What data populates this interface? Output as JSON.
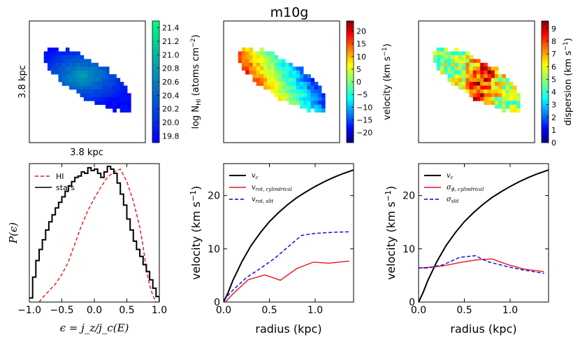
{
  "suptitle": "m10g",
  "maps": [
    {
      "id": "hi",
      "xlabel": "3.8 kpc",
      "ylabel": "3.8 kpc",
      "colorbar": {
        "label": "log N_HI (atoms cm^-2)",
        "ticks": [
          "19.8",
          "20.0",
          "20.2",
          "20.4",
          "20.6",
          "20.8",
          "21.0",
          "21.2",
          "21.4"
        ],
        "range": [
          19.7,
          21.5
        ],
        "colormap": "winter",
        "colors": [
          "#0000ff",
          "#00ff80"
        ]
      }
    },
    {
      "id": "velocity",
      "colorbar": {
        "label": "velocity (km s^-1)",
        "ticks": [
          "−20",
          "−15",
          "−10",
          "−5",
          "0",
          "5",
          "10",
          "15",
          "20"
        ],
        "range": [
          -24,
          24
        ],
        "colormap": "jet",
        "colors": [
          "#00007f",
          "#0000ff",
          "#00ffff",
          "#7fff7f",
          "#ffff00",
          "#ff0000",
          "#7f0000"
        ]
      }
    },
    {
      "id": "dispersion",
      "colorbar": {
        "label": "dispersion (km s^-1)",
        "ticks": [
          "0",
          "1",
          "2",
          "3",
          "4",
          "5",
          "6",
          "7",
          "8",
          "9"
        ],
        "range": [
          0,
          9.6
        ],
        "colormap": "jet",
        "colors": [
          "#00007f",
          "#0000ff",
          "#00ffff",
          "#7fff7f",
          "#ffff00",
          "#ff0000",
          "#7f0000"
        ]
      }
    }
  ],
  "chart_data": [
    {
      "type": "line",
      "id": "circularity",
      "xlabel": "ϵ = j_z/j_c(E)",
      "ylabel": "P(ϵ)",
      "xlim": [
        -1.0,
        1.0
      ],
      "ylim": [
        0,
        1.0
      ],
      "xticks": [
        -1.0,
        -0.5,
        0.0,
        0.5,
        1.0
      ],
      "xtick_labels": [
        "−1.0",
        "−0.5",
        "0.0",
        "0.5",
        "1.0"
      ],
      "legend": "top-left",
      "series": [
        {
          "name": "HI",
          "style": "dashed",
          "color": "#e8141c",
          "x": [
            -0.85,
            -0.8,
            -0.7,
            -0.6,
            -0.5,
            -0.4,
            -0.3,
            -0.2,
            -0.1,
            0.0,
            0.1,
            0.2,
            0.3,
            0.4,
            0.5,
            0.6,
            0.7,
            0.75,
            0.8,
            0.85,
            0.9,
            0.95
          ],
          "y": [
            0.0,
            0.03,
            0.08,
            0.13,
            0.2,
            0.29,
            0.42,
            0.55,
            0.66,
            0.75,
            0.83,
            0.9,
            0.94,
            0.96,
            0.87,
            0.73,
            0.54,
            0.4,
            0.24,
            0.12,
            0.05,
            0.0
          ]
        },
        {
          "name": "stars",
          "style": "solid-step",
          "color": "#000000",
          "x": [
            -1.0,
            -0.95,
            -0.9,
            -0.85,
            -0.8,
            -0.75,
            -0.7,
            -0.65,
            -0.6,
            -0.55,
            -0.5,
            -0.45,
            -0.4,
            -0.35,
            -0.3,
            -0.25,
            -0.2,
            -0.15,
            -0.1,
            -0.05,
            0.0,
            0.05,
            0.1,
            0.15,
            0.2,
            0.25,
            0.3,
            0.35,
            0.4,
            0.45,
            0.5,
            0.55,
            0.6,
            0.65,
            0.7,
            0.75,
            0.8,
            0.85,
            0.9,
            0.95,
            1.0
          ],
          "y": [
            0.03,
            0.18,
            0.3,
            0.38,
            0.45,
            0.52,
            0.58,
            0.63,
            0.68,
            0.72,
            0.76,
            0.8,
            0.84,
            0.87,
            0.9,
            0.91,
            0.94,
            0.93,
            0.97,
            0.95,
            0.96,
            0.93,
            0.9,
            0.94,
            0.98,
            0.96,
            0.93,
            0.86,
            0.78,
            0.7,
            0.6,
            0.52,
            0.44,
            0.38,
            0.33,
            0.27,
            0.22,
            0.16,
            0.1,
            0.04,
            0.0
          ]
        }
      ]
    },
    {
      "type": "line",
      "id": "rotation",
      "xlabel": "radius (kpc)",
      "ylabel": "velocity (km s^-1)",
      "xlim": [
        0,
        1.42
      ],
      "ylim": [
        0,
        26
      ],
      "xticks": [
        0.0,
        0.5,
        1.0
      ],
      "xtick_labels": [
        "0.0",
        "0.5",
        "1.0"
      ],
      "yticks": [
        0,
        10,
        20
      ],
      "legend": "top-left",
      "series": [
        {
          "name": "v_c",
          "style": "solid",
          "color": "#000000",
          "x": [
            0.0,
            0.05,
            0.1,
            0.2,
            0.3,
            0.4,
            0.5,
            0.6,
            0.7,
            0.8,
            0.9,
            1.0,
            1.1,
            1.2,
            1.3,
            1.42
          ],
          "y": [
            0.0,
            1.8,
            4.0,
            7.6,
            10.6,
            13.0,
            15.1,
            16.8,
            18.3,
            19.6,
            20.7,
            21.7,
            22.6,
            23.4,
            24.1,
            24.8
          ]
        },
        {
          "name": "v_rot, cylindrical",
          "style": "solid",
          "color": "#e8141c",
          "x": [
            0.02,
            0.1,
            0.27,
            0.45,
            0.62,
            0.8,
            0.98,
            1.15,
            1.37
          ],
          "y": [
            0.0,
            1.5,
            4.2,
            5.1,
            4.1,
            6.3,
            7.5,
            7.3,
            7.7
          ]
        },
        {
          "name": "v_rot, slit",
          "style": "dashed",
          "color": "#0000ee",
          "x": [
            0.0,
            0.1,
            0.25,
            0.4,
            0.55,
            0.7,
            0.85,
            1.0,
            1.2,
            1.37
          ],
          "y": [
            0.4,
            2.2,
            4.6,
            6.3,
            8.1,
            10.3,
            12.5,
            12.9,
            13.1,
            13.2
          ]
        }
      ]
    },
    {
      "type": "line",
      "id": "dispersion-profile",
      "xlabel": "radius (kpc)",
      "ylabel": "velocity (km s^-1)",
      "xlim": [
        0,
        1.42
      ],
      "ylim": [
        0,
        26
      ],
      "xticks": [
        0.0,
        0.5,
        1.0
      ],
      "xtick_labels": [
        "0.0",
        "0.5",
        "1.0"
      ],
      "yticks": [
        0,
        10,
        20
      ],
      "legend": "top-left",
      "series": [
        {
          "name": "v_c",
          "style": "solid",
          "color": "#000000",
          "x": [
            0.0,
            0.05,
            0.1,
            0.2,
            0.3,
            0.4,
            0.5,
            0.6,
            0.7,
            0.8,
            0.9,
            1.0,
            1.1,
            1.2,
            1.3,
            1.42
          ],
          "y": [
            0.0,
            1.8,
            4.0,
            7.6,
            10.6,
            13.0,
            15.1,
            16.8,
            18.3,
            19.6,
            20.7,
            21.7,
            22.6,
            23.4,
            24.1,
            24.8
          ]
        },
        {
          "name": "σ_φ, cylindrical",
          "style": "solid",
          "color": "#e8141c",
          "x": [
            0.0,
            0.1,
            0.27,
            0.45,
            0.62,
            0.8,
            0.98,
            1.15,
            1.37
          ],
          "y": [
            6.4,
            6.5,
            6.8,
            7.4,
            7.9,
            8.1,
            7.0,
            6.2,
            5.7
          ]
        },
        {
          "name": "σ_slit",
          "style": "dashed",
          "color": "#0000ee",
          "x": [
            0.0,
            0.1,
            0.27,
            0.45,
            0.62,
            0.75,
            0.98,
            1.15,
            1.37
          ],
          "y": [
            6.4,
            6.4,
            7.0,
            8.4,
            8.7,
            7.6,
            6.6,
            6.0,
            5.4
          ]
        }
      ]
    }
  ]
}
